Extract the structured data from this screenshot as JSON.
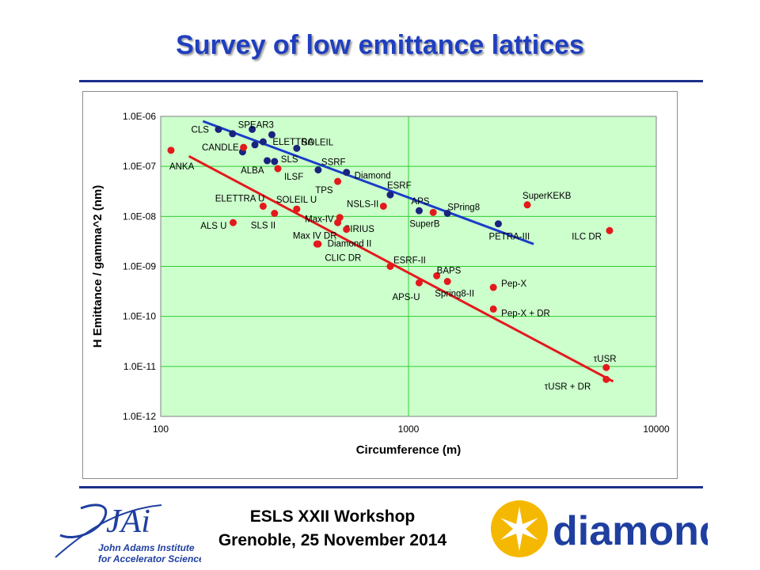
{
  "slide": {
    "title": "Survey of low emittance lattices"
  },
  "footer": {
    "line1": "ESLS XXII Workshop",
    "line2": "Grenoble, 25 November 2014",
    "left_logo": {
      "letters": "JAi",
      "text_line1": "John Adams Institute",
      "text_line2": "for Accelerator Science"
    },
    "right_logo": {
      "text": "diamond"
    }
  },
  "colors": {
    "title": "#1f3fbf",
    "rule": "#1b2f8a",
    "plot_area": "#ccffcc",
    "gridline": "#33cc33",
    "existing_series": "#1a237e",
    "existing_fit": "#1a3cc8",
    "planned_series": "#e3191c",
    "planned_fit": "#e3191c",
    "jai_logo": "#1f3fa0",
    "diamond_sun": "#f5b800",
    "diamond_text": "#1f3fa0"
  },
  "chart_data": {
    "type": "scatter",
    "title": "",
    "xlabel": "Circumference (m)",
    "ylabel": "H Emittance / gamma^2 (nm)",
    "xscale": "log",
    "yscale": "log",
    "xlim": [
      100,
      10000
    ],
    "ylim": [
      1e-12,
      1e-06
    ],
    "x_ticks": [
      "100",
      "1000",
      "10000"
    ],
    "y_ticks": [
      "1.0E-12",
      "1.0E-11",
      "1.0E-10",
      "1.0E-09",
      "1.0E-08",
      "1.0E-07",
      "1.0E-06"
    ],
    "grid": true,
    "legend": "none",
    "series": [
      {
        "color": "#1a237e",
        "points": [
          {
            "label": "CLS",
            "x": 171,
            "y": 5.5e-07
          },
          {
            "label": "",
            "x": 195,
            "y": 4.5e-07
          },
          {
            "label": "SPEAR3",
            "x": 234,
            "y": 5.5e-07
          },
          {
            "label": "",
            "x": 281,
            "y": 4.3e-07
          },
          {
            "label": "ELETTRA",
            "x": 259,
            "y": 3.1e-07
          },
          {
            "label": "",
            "x": 240,
            "y": 2.7e-07
          },
          {
            "label": "SOLEIL",
            "x": 354,
            "y": 2.3e-07
          },
          {
            "label": "",
            "x": 214,
            "y": 1.95e-07
          },
          {
            "label": "SLS",
            "x": 288,
            "y": 1.25e-07
          },
          {
            "label": "ALBA",
            "x": 269,
            "y": 1.3e-07
          },
          {
            "label": "SSRF",
            "x": 432,
            "y": 8.5e-08
          },
          {
            "label": "Diamond",
            "x": 562,
            "y": 7.6e-08
          },
          {
            "label": "ESRF",
            "x": 844,
            "y": 2.7e-08
          },
          {
            "label": "APS",
            "x": 1104,
            "y": 1.3e-08
          },
          {
            "label": "SPring8",
            "x": 1436,
            "y": 1.15e-08
          },
          {
            "label": "PETRA-III",
            "x": 2304,
            "y": 7.1e-09
          }
        ],
        "fit": {
          "x": [
            148,
            3200
          ],
          "y": [
            8e-07,
            2.8e-09
          ]
        }
      },
      {
        "color": "#e3191c",
        "points": [
          {
            "label": "ANKA",
            "x": 110,
            "y": 2.1e-07
          },
          {
            "label": "CANDLE",
            "x": 216,
            "y": 2.4e-07
          },
          {
            "label": "ILSF",
            "x": 297,
            "y": 9e-08
          },
          {
            "label": "TPS",
            "x": 518,
            "y": 5e-08
          },
          {
            "label": "ELETTRA U",
            "x": 259,
            "y": 1.6e-08
          },
          {
            "label": "SOLEIL U",
            "x": 354,
            "y": 1.4e-08
          },
          {
            "label": "SLS II",
            "x": 288,
            "y": 1.15e-08
          },
          {
            "label": "ALS U",
            "x": 196,
            "y": 7.5e-09
          },
          {
            "label": "NSLS-II",
            "x": 792,
            "y": 1.6e-08
          },
          {
            "label": "SuperB",
            "x": 1258,
            "y": 1.2e-08
          },
          {
            "label": "Max-IV",
            "x": 528,
            "y": 9.5e-09
          },
          {
            "label": "SIRIUS",
            "x": 518,
            "y": 7.5e-09
          },
          {
            "label": "Diamond II",
            "x": 562,
            "y": 5.5e-09
          },
          {
            "label": "Max IV DR",
            "x": 432,
            "y": 2.8e-09
          },
          {
            "label": "CLIC DR",
            "x": 427,
            "y": 2.8e-09
          },
          {
            "label": "SuperKEKB",
            "x": 3016,
            "y": 1.7e-08
          },
          {
            "label": "ILC DR",
            "x": 6477,
            "y": 5.2e-09
          },
          {
            "label": "ESRF-II",
            "x": 844,
            "y": 1e-09
          },
          {
            "label": "BAPS",
            "x": 1300,
            "y": 6.5e-10
          },
          {
            "label": "APS-U",
            "x": 1104,
            "y": 4.7e-10
          },
          {
            "label": "Spring8-II",
            "x": 1436,
            "y": 5e-10
          },
          {
            "label": "Pep-X",
            "x": 2200,
            "y": 3.8e-10
          },
          {
            "label": "Pep-X + DR",
            "x": 2200,
            "y": 1.4e-10
          },
          {
            "label": "τUSR",
            "x": 6280,
            "y": 9.5e-12
          },
          {
            "label": "τUSR + DR",
            "x": 6280,
            "y": 5.5e-12
          }
        ],
        "fit": {
          "x": [
            130,
            6700
          ],
          "y": [
            1.6e-07,
            5e-12
          ]
        }
      }
    ]
  }
}
